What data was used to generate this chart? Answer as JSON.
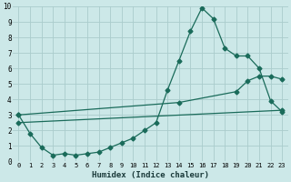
{
  "xlabel": "Humidex (Indice chaleur)",
  "ylabel": "",
  "bg_color": "#cce8e8",
  "grid_color": "#aacccc",
  "line_color": "#1a6b5a",
  "xlim": [
    -0.5,
    23.5
  ],
  "ylim": [
    0,
    10
  ],
  "xticks": [
    0,
    1,
    2,
    3,
    4,
    5,
    6,
    7,
    8,
    9,
    10,
    11,
    12,
    13,
    14,
    15,
    16,
    17,
    18,
    19,
    20,
    21,
    22,
    23
  ],
  "yticks": [
    0,
    1,
    2,
    3,
    4,
    5,
    6,
    7,
    8,
    9,
    10
  ],
  "curve1_x": [
    0,
    1,
    2,
    3,
    4,
    5,
    6,
    7,
    8,
    9,
    10,
    11,
    12,
    13,
    14,
    15,
    16,
    17,
    18,
    19,
    20,
    21,
    22,
    23
  ],
  "curve1_y": [
    3.0,
    1.8,
    0.9,
    0.4,
    0.5,
    0.4,
    0.5,
    0.6,
    0.9,
    1.2,
    1.5,
    2.0,
    2.5,
    4.6,
    6.5,
    8.4,
    9.9,
    9.2,
    7.3,
    6.8,
    6.8,
    6.0,
    3.9,
    3.2
  ],
  "curve2_x": [
    0,
    14,
    19,
    20,
    21,
    22,
    23
  ],
  "curve2_y": [
    3.0,
    3.8,
    4.5,
    5.2,
    5.5,
    5.5,
    5.3
  ],
  "curve3_x": [
    0,
    23
  ],
  "curve3_y": [
    2.5,
    3.3
  ],
  "marker": "D",
  "marker_size": 2.5,
  "linewidth": 0.9,
  "tick_fontsize": 5.0,
  "xlabel_fontsize": 6.5
}
